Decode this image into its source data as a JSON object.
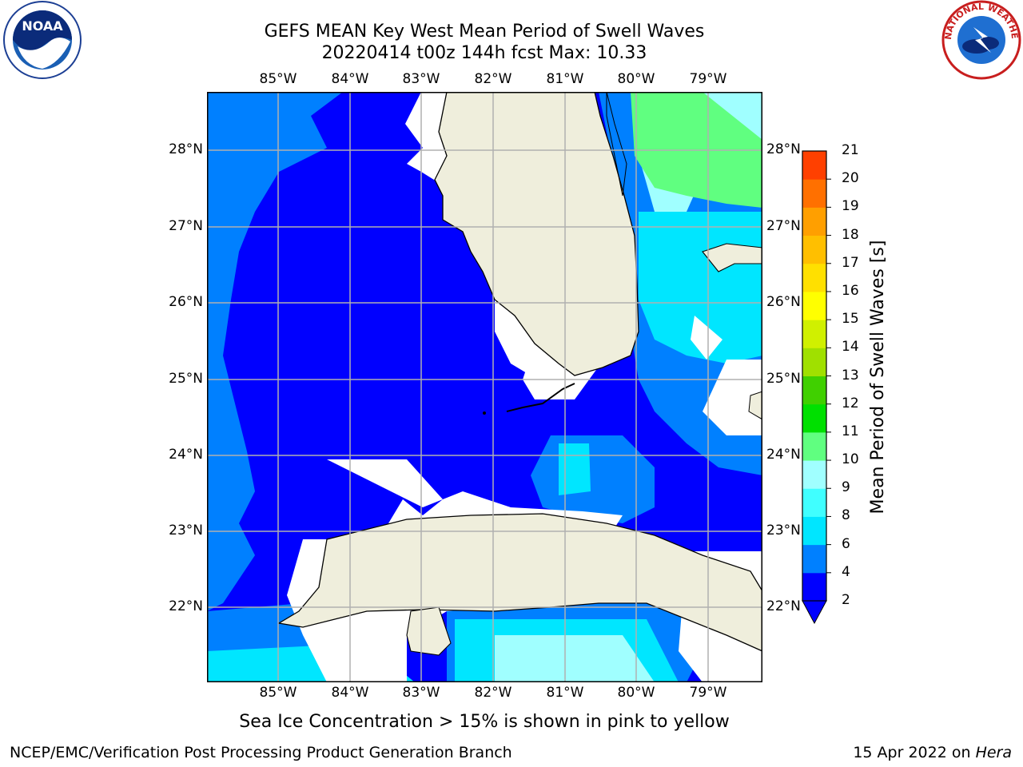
{
  "title": {
    "line1": "GEFS MEAN Key West Mean Period of Swell Waves",
    "line2": "20220414 t00z 144h fcst   Max: 10.33"
  },
  "logos": {
    "left": {
      "icon": "noaa-logo-icon",
      "text": "NOAA"
    },
    "right": {
      "icon": "nws-logo-icon",
      "text": "NATIONAL WEATHER SERVICE"
    }
  },
  "map": {
    "lon_labels": [
      "85°W",
      "84°W",
      "83°W",
      "82°W",
      "81°W",
      "80°W",
      "79°W"
    ],
    "lat_labels": [
      "28°N",
      "27°N",
      "26°N",
      "25°N",
      "24°N",
      "23°N",
      "22°N"
    ],
    "land_color": "#efeedc",
    "grid_color": "#b0b0b0"
  },
  "colorbar": {
    "label": "Mean Period of Swell Waves [s]",
    "ticks": [
      "2",
      "4",
      "6",
      "8",
      "9",
      "10",
      "11",
      "12",
      "13",
      "14",
      "15",
      "16",
      "17",
      "18",
      "19",
      "20",
      "21"
    ],
    "colors": [
      "#0000ff",
      "#0080ff",
      "#00e6ff",
      "#40ffff",
      "#a0ffff",
      "#60ff80",
      "#00e000",
      "#40d000",
      "#a0e000",
      "#d0f000",
      "#ffff00",
      "#ffe000",
      "#ffbf00",
      "#ff9f00",
      "#ff7000",
      "#ff4000",
      "#ff0000"
    ],
    "extend_color": "#0000ff"
  },
  "subtitle": "Sea Ice Concentration > 15% is shown in pink to yellow",
  "footer": {
    "left": "NCEP/EMC/Verification Post Processing Product Generation Branch",
    "date": "15 Apr 2022 on ",
    "host": "Hera"
  }
}
